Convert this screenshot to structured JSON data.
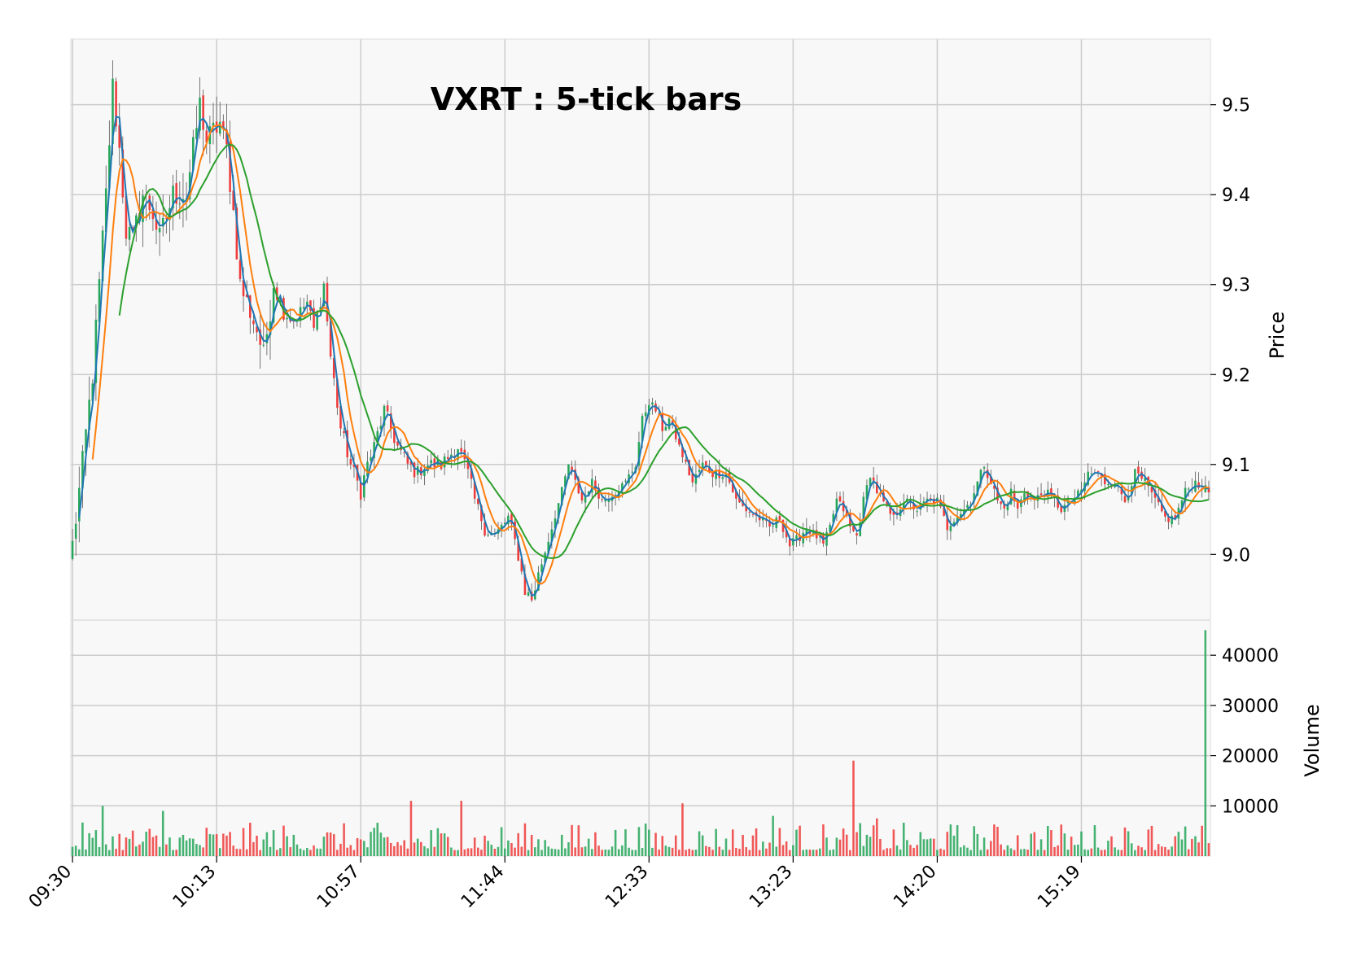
{
  "colors": {
    "up": "#26a65b",
    "down": "#ef3b3b",
    "ma_fast": "#1f77b4",
    "ma_mid": "#ff7f0e",
    "ma_slow": "#2ca02c",
    "panel_bg": "#f8f8f8",
    "grid": "#cccccc"
  },
  "chart_data": {
    "type": "candlestick",
    "title": "VXRT : 5-tick bars",
    "ylabel": "Price",
    "volume_label": "Volume",
    "price_ylim": [
      8.927,
      9.573
    ],
    "volume_ylim": [
      0,
      47000
    ],
    "price_ticks": [
      9.0,
      9.1,
      9.2,
      9.3,
      9.4,
      9.5
    ],
    "price_tick_labels": [
      "9.0",
      "9.1",
      "9.2",
      "9.3",
      "9.4",
      "9.5"
    ],
    "volume_ticks": [
      10000,
      20000,
      30000,
      40000
    ],
    "volume_tick_labels": [
      "10000",
      "20000",
      "30000",
      "40000"
    ],
    "x_tick_indices": [
      0,
      43,
      86,
      129,
      172,
      215,
      258,
      301
    ],
    "x_tick_labels": [
      "09:30",
      "10:13",
      "10:57",
      "11:44",
      "12:33",
      "13:23",
      "14:20",
      "15:19"
    ],
    "bar_count": 340,
    "grid": true,
    "moving_average_periods": [
      3,
      7,
      15
    ],
    "price_path": [
      [
        0,
        9.01
      ],
      [
        3,
        9.1
      ],
      [
        6,
        9.2
      ],
      [
        8,
        9.3
      ],
      [
        10,
        9.4
      ],
      [
        12,
        9.52
      ],
      [
        14,
        9.45
      ],
      [
        16,
        9.36
      ],
      [
        18,
        9.35
      ],
      [
        21,
        9.4
      ],
      [
        24,
        9.38
      ],
      [
        26,
        9.35
      ],
      [
        30,
        9.4
      ],
      [
        34,
        9.4
      ],
      [
        38,
        9.5
      ],
      [
        40,
        9.46
      ],
      [
        44,
        9.48
      ],
      [
        46,
        9.45
      ],
      [
        48,
        9.38
      ],
      [
        50,
        9.3
      ],
      [
        52,
        9.28
      ],
      [
        55,
        9.25
      ],
      [
        57,
        9.22
      ],
      [
        60,
        9.3
      ],
      [
        63,
        9.27
      ],
      [
        66,
        9.26
      ],
      [
        70,
        9.28
      ],
      [
        72,
        9.25
      ],
      [
        75,
        9.3
      ],
      [
        77,
        9.22
      ],
      [
        80,
        9.14
      ],
      [
        83,
        9.1
      ],
      [
        86,
        9.07
      ],
      [
        88,
        9.1
      ],
      [
        90,
        9.12
      ],
      [
        93,
        9.16
      ],
      [
        95,
        9.14
      ],
      [
        97,
        9.12
      ],
      [
        100,
        9.1
      ],
      [
        103,
        9.09
      ],
      [
        105,
        9.1
      ],
      [
        110,
        9.1
      ],
      [
        115,
        9.12
      ],
      [
        118,
        9.09
      ],
      [
        120,
        9.06
      ],
      [
        123,
        9.03
      ],
      [
        126,
        9.02
      ],
      [
        130,
        9.04
      ],
      [
        133,
        9.0
      ],
      [
        135,
        8.96
      ],
      [
        137,
        8.95
      ],
      [
        140,
        8.99
      ],
      [
        143,
        9.03
      ],
      [
        146,
        9.07
      ],
      [
        148,
        9.1
      ],
      [
        150,
        9.08
      ],
      [
        152,
        9.06
      ],
      [
        155,
        9.08
      ],
      [
        158,
        9.06
      ],
      [
        162,
        9.07
      ],
      [
        165,
        9.08
      ],
      [
        168,
        9.1
      ],
      [
        170,
        9.15
      ],
      [
        172,
        9.17
      ],
      [
        174,
        9.16
      ],
      [
        176,
        9.14
      ],
      [
        178,
        9.15
      ],
      [
        181,
        9.12
      ],
      [
        183,
        9.1
      ],
      [
        185,
        9.08
      ],
      [
        188,
        9.1
      ],
      [
        191,
        9.09
      ],
      [
        195,
        9.09
      ],
      [
        198,
        9.06
      ],
      [
        201,
        9.05
      ],
      [
        205,
        9.04
      ],
      [
        208,
        9.03
      ],
      [
        211,
        9.04
      ],
      [
        214,
        9.01
      ],
      [
        217,
        9.02
      ],
      [
        219,
        9.03
      ],
      [
        222,
        9.02
      ],
      [
        224,
        9.01
      ],
      [
        226,
        9.03
      ],
      [
        228,
        9.06
      ],
      [
        230,
        9.05
      ],
      [
        232,
        9.03
      ],
      [
        234,
        9.02
      ],
      [
        236,
        9.06
      ],
      [
        238,
        9.09
      ],
      [
        240,
        9.07
      ],
      [
        243,
        9.05
      ],
      [
        245,
        9.04
      ],
      [
        248,
        9.06
      ],
      [
        252,
        9.05
      ],
      [
        255,
        9.06
      ],
      [
        258,
        9.06
      ],
      [
        261,
        9.03
      ],
      [
        263,
        9.04
      ],
      [
        266,
        9.05
      ],
      [
        268,
        9.06
      ],
      [
        270,
        9.08
      ],
      [
        272,
        9.1
      ],
      [
        274,
        9.08
      ],
      [
        276,
        9.06
      ],
      [
        278,
        9.05
      ],
      [
        280,
        9.07
      ],
      [
        282,
        9.05
      ],
      [
        284,
        9.07
      ],
      [
        287,
        9.06
      ],
      [
        290,
        9.07
      ],
      [
        293,
        9.06
      ],
      [
        295,
        9.05
      ],
      [
        298,
        9.06
      ],
      [
        301,
        9.07
      ],
      [
        303,
        9.09
      ],
      [
        306,
        9.09
      ],
      [
        308,
        9.08
      ],
      [
        311,
        9.08
      ],
      [
        314,
        9.06
      ],
      [
        317,
        9.09
      ],
      [
        320,
        9.08
      ],
      [
        323,
        9.06
      ],
      [
        326,
        9.04
      ],
      [
        329,
        9.04
      ],
      [
        332,
        9.07
      ],
      [
        335,
        9.08
      ],
      [
        339,
        9.07
      ]
    ],
    "volume_spikes": [
      {
        "bar": 338,
        "volume": 45000
      },
      {
        "bar": 233,
        "volume": 19000
      },
      {
        "bar": 182,
        "volume": 10500
      },
      {
        "bar": 101,
        "volume": 11000
      },
      {
        "bar": 116,
        "volume": 11000
      },
      {
        "bar": 9,
        "volume": 10000
      },
      {
        "bar": 27,
        "volume": 9000
      },
      {
        "bar": 209,
        "volume": 8000
      },
      {
        "bar": 240,
        "volume": 7500
      },
      {
        "bar": 291,
        "volume": 6000
      },
      {
        "bar": 322,
        "volume": 6000
      }
    ]
  }
}
